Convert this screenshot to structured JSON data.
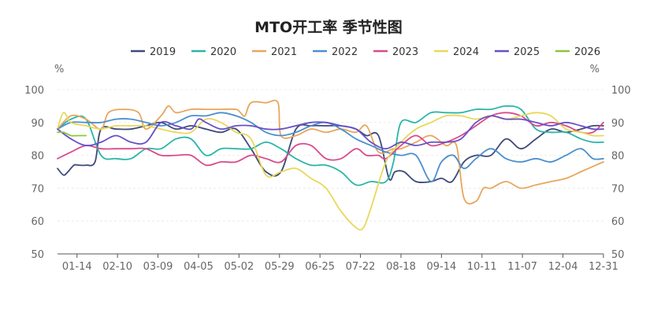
{
  "chart_data": {
    "type": "line",
    "title": "MTO开工率 季节性图",
    "y_unit_left": "%",
    "y_unit_right": "%",
    "ylim": [
      50,
      100
    ],
    "y_ticks": [
      50,
      60,
      70,
      80,
      90,
      100
    ],
    "x_tick_labels": [
      "01-14",
      "02-10",
      "03-09",
      "04-05",
      "05-02",
      "05-29",
      "06-25",
      "07-22",
      "08-18",
      "09-14",
      "10-11",
      "11-07",
      "12-04",
      "12-31"
    ],
    "x_tick_days": [
      14,
      41,
      68,
      95,
      122,
      149,
      176,
      203,
      230,
      257,
      284,
      311,
      338,
      365
    ],
    "x_range_days": [
      1,
      365
    ],
    "series": [
      {
        "name": "2019",
        "color": "#3d4a7a",
        "days": [
          1,
          5,
          8,
          12,
          15,
          20,
          26,
          30,
          40,
          50,
          60,
          70,
          80,
          90,
          100,
          110,
          120,
          130,
          140,
          150,
          160,
          170,
          180,
          190,
          200,
          207,
          215,
          222,
          226,
          232,
          240,
          250,
          257,
          264,
          272,
          280,
          290,
          300,
          310,
          320,
          330,
          340,
          350,
          358,
          365
        ],
        "values": [
          76,
          74,
          75,
          77,
          77,
          77,
          78,
          88,
          88,
          88,
          89,
          90,
          88,
          89,
          88,
          87,
          88,
          82,
          75,
          75,
          88,
          89,
          89,
          89,
          88,
          86,
          86,
          73,
          75,
          75,
          72,
          72,
          73,
          72,
          78,
          80,
          80,
          85,
          82,
          85,
          88,
          87,
          88,
          89,
          89
        ]
      },
      {
        "name": "2020",
        "color": "#2bb5a8",
        "days": [
          1,
          10,
          20,
          30,
          40,
          50,
          60,
          70,
          80,
          90,
          100,
          110,
          120,
          130,
          140,
          150,
          160,
          170,
          180,
          190,
          200,
          210,
          220,
          225,
          230,
          240,
          250,
          260,
          270,
          280,
          290,
          300,
          310,
          320,
          330,
          340,
          350,
          358,
          365
        ],
        "values": [
          88,
          91,
          91,
          80,
          79,
          79,
          82,
          82,
          85,
          85,
          80,
          82,
          82,
          82,
          84,
          82,
          79,
          77,
          77,
          75,
          71,
          72,
          72,
          78,
          90,
          90,
          93,
          93,
          93,
          94,
          94,
          95,
          94,
          88,
          87,
          87,
          85,
          84,
          84
        ]
      },
      {
        "name": "2021",
        "color": "#e8a65d",
        "days": [
          1,
          10,
          20,
          30,
          35,
          45,
          55,
          60,
          70,
          75,
          80,
          90,
          100,
          110,
          120,
          123,
          126,
          130,
          140,
          148,
          150,
          160,
          170,
          180,
          190,
          200,
          207,
          215,
          225,
          230,
          240,
          250,
          260,
          267,
          272,
          280,
          285,
          290,
          300,
          310,
          320,
          330,
          340,
          350,
          360,
          365
        ],
        "values": [
          88,
          92,
          91,
          88,
          93,
          94,
          93,
          88,
          92,
          95,
          93,
          94,
          94,
          94,
          94,
          93,
          92,
          96,
          96,
          96,
          86,
          86,
          88,
          87,
          88,
          87,
          89,
          81,
          82,
          82,
          84,
          86,
          83,
          83,
          67,
          66,
          70,
          70,
          72,
          70,
          71,
          72,
          73,
          75,
          77,
          78
        ]
      },
      {
        "name": "2022",
        "color": "#4a8fce",
        "days": [
          1,
          10,
          20,
          30,
          40,
          50,
          60,
          70,
          80,
          90,
          100,
          110,
          120,
          130,
          140,
          150,
          160,
          170,
          180,
          190,
          200,
          210,
          220,
          230,
          240,
          250,
          257,
          265,
          272,
          280,
          290,
          300,
          310,
          320,
          330,
          340,
          350,
          358,
          365
        ],
        "values": [
          88,
          90,
          90,
          90,
          91,
          91,
          90,
          89,
          90,
          92,
          92,
          93,
          92,
          90,
          87,
          86,
          87,
          89,
          90,
          88,
          85,
          83,
          81,
          80,
          80,
          72,
          78,
          80,
          76,
          79,
          82,
          79,
          78,
          79,
          78,
          80,
          82,
          79,
          79
        ]
      },
      {
        "name": "2023",
        "color": "#d94a8c",
        "days": [
          1,
          10,
          20,
          30,
          40,
          50,
          60,
          70,
          80,
          90,
          100,
          110,
          120,
          130,
          140,
          150,
          160,
          170,
          180,
          190,
          200,
          207,
          215,
          220,
          230,
          240,
          250,
          260,
          270,
          280,
          290,
          300,
          310,
          320,
          330,
          340,
          350,
          358,
          365
        ],
        "values": [
          79,
          81,
          83,
          82,
          82,
          82,
          82,
          80,
          80,
          80,
          77,
          78,
          78,
          80,
          79,
          78,
          83,
          83,
          79,
          79,
          82,
          80,
          80,
          79,
          83,
          86,
          83,
          84,
          86,
          89,
          92,
          93,
          92,
          89,
          90,
          89,
          87,
          87,
          90
        ]
      },
      {
        "name": "2024",
        "color": "#e8d85a",
        "days": [
          1,
          5,
          10,
          20,
          30,
          40,
          50,
          60,
          70,
          80,
          90,
          100,
          110,
          120,
          130,
          140,
          150,
          160,
          170,
          180,
          190,
          200,
          205,
          210,
          220,
          230,
          240,
          250,
          260,
          270,
          280,
          290,
          300,
          310,
          320,
          330,
          340,
          350,
          358,
          365
        ],
        "values": [
          88,
          93,
          90,
          89,
          88,
          89,
          89,
          89,
          88,
          87,
          87,
          91,
          90,
          87,
          85,
          74,
          75,
          76,
          73,
          70,
          63,
          58,
          58,
          64,
          78,
          84,
          88,
          90,
          92,
          92,
          91,
          92,
          91,
          92,
          93,
          92,
          88,
          87,
          86,
          86
        ]
      },
      {
        "name": "2025",
        "color": "#6650c8",
        "days": [
          1,
          10,
          20,
          30,
          40,
          50,
          60,
          70,
          80,
          90,
          95,
          100,
          110,
          120,
          130,
          140,
          150,
          160,
          170,
          180,
          190,
          200,
          210,
          220,
          230,
          240,
          250,
          260,
          270,
          280,
          290,
          300,
          310,
          320,
          330,
          340,
          350,
          358,
          365
        ],
        "values": [
          88,
          85,
          83,
          84,
          86,
          84,
          84,
          90,
          89,
          88,
          91,
          90,
          88,
          89,
          89,
          88,
          88,
          89,
          90,
          90,
          89,
          88,
          84,
          82,
          84,
          83,
          84,
          84,
          85,
          90,
          92,
          91,
          91,
          90,
          89,
          90,
          89,
          88,
          88
        ]
      },
      {
        "name": "2026",
        "color": "#8cc63f",
        "days": [
          1,
          5,
          10,
          15,
          20
        ],
        "values": [
          87,
          87,
          86,
          86,
          86
        ]
      }
    ]
  }
}
